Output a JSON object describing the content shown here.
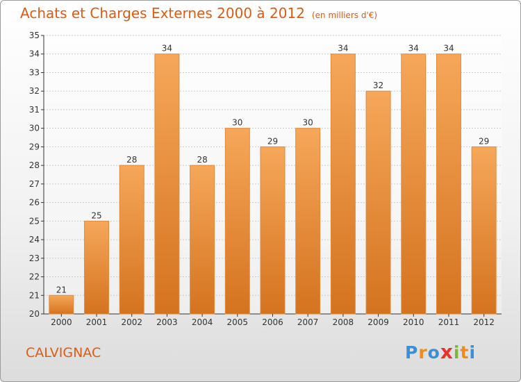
{
  "header": {
    "title": "Achats et Charges Externes 2000 à 2012",
    "unit": "(en milliers d'€)"
  },
  "footer": {
    "commune": "CALVIGNAC",
    "logo_letters": [
      "P",
      "r",
      "o",
      "x",
      "i",
      "t",
      "i"
    ],
    "logo_colors": [
      "#3a8fd6",
      "#f08a1e",
      "#3a8fd6",
      "#e8322b",
      "#7ab83a",
      "#f08a1e",
      "#3a8fd6"
    ]
  },
  "colors": {
    "bar_light": "#f6a75a",
    "bar_dark": "#d4731f",
    "bar_stroke": "#e08a3a",
    "title": "#e05a10",
    "grid": "#cccccc",
    "axis": "#333333"
  },
  "chart_data": {
    "type": "bar",
    "title": "Achats et Charges Externes 2000 à 2012",
    "subtitle": "(en milliers d'€)",
    "xlabel": "",
    "ylabel": "",
    "categories": [
      "2000",
      "2001",
      "2002",
      "2003",
      "2004",
      "2005",
      "2006",
      "2007",
      "2008",
      "2009",
      "2010",
      "2011",
      "2012"
    ],
    "values": [
      21,
      25,
      28,
      34,
      28,
      30,
      29,
      30,
      34,
      32,
      34,
      34,
      29
    ],
    "ylim": [
      20,
      35
    ],
    "yticks": [
      20,
      21,
      22,
      23,
      24,
      25,
      26,
      27,
      28,
      29,
      30,
      31,
      32,
      33,
      34,
      35
    ],
    "grid": true,
    "legend": "none"
  }
}
